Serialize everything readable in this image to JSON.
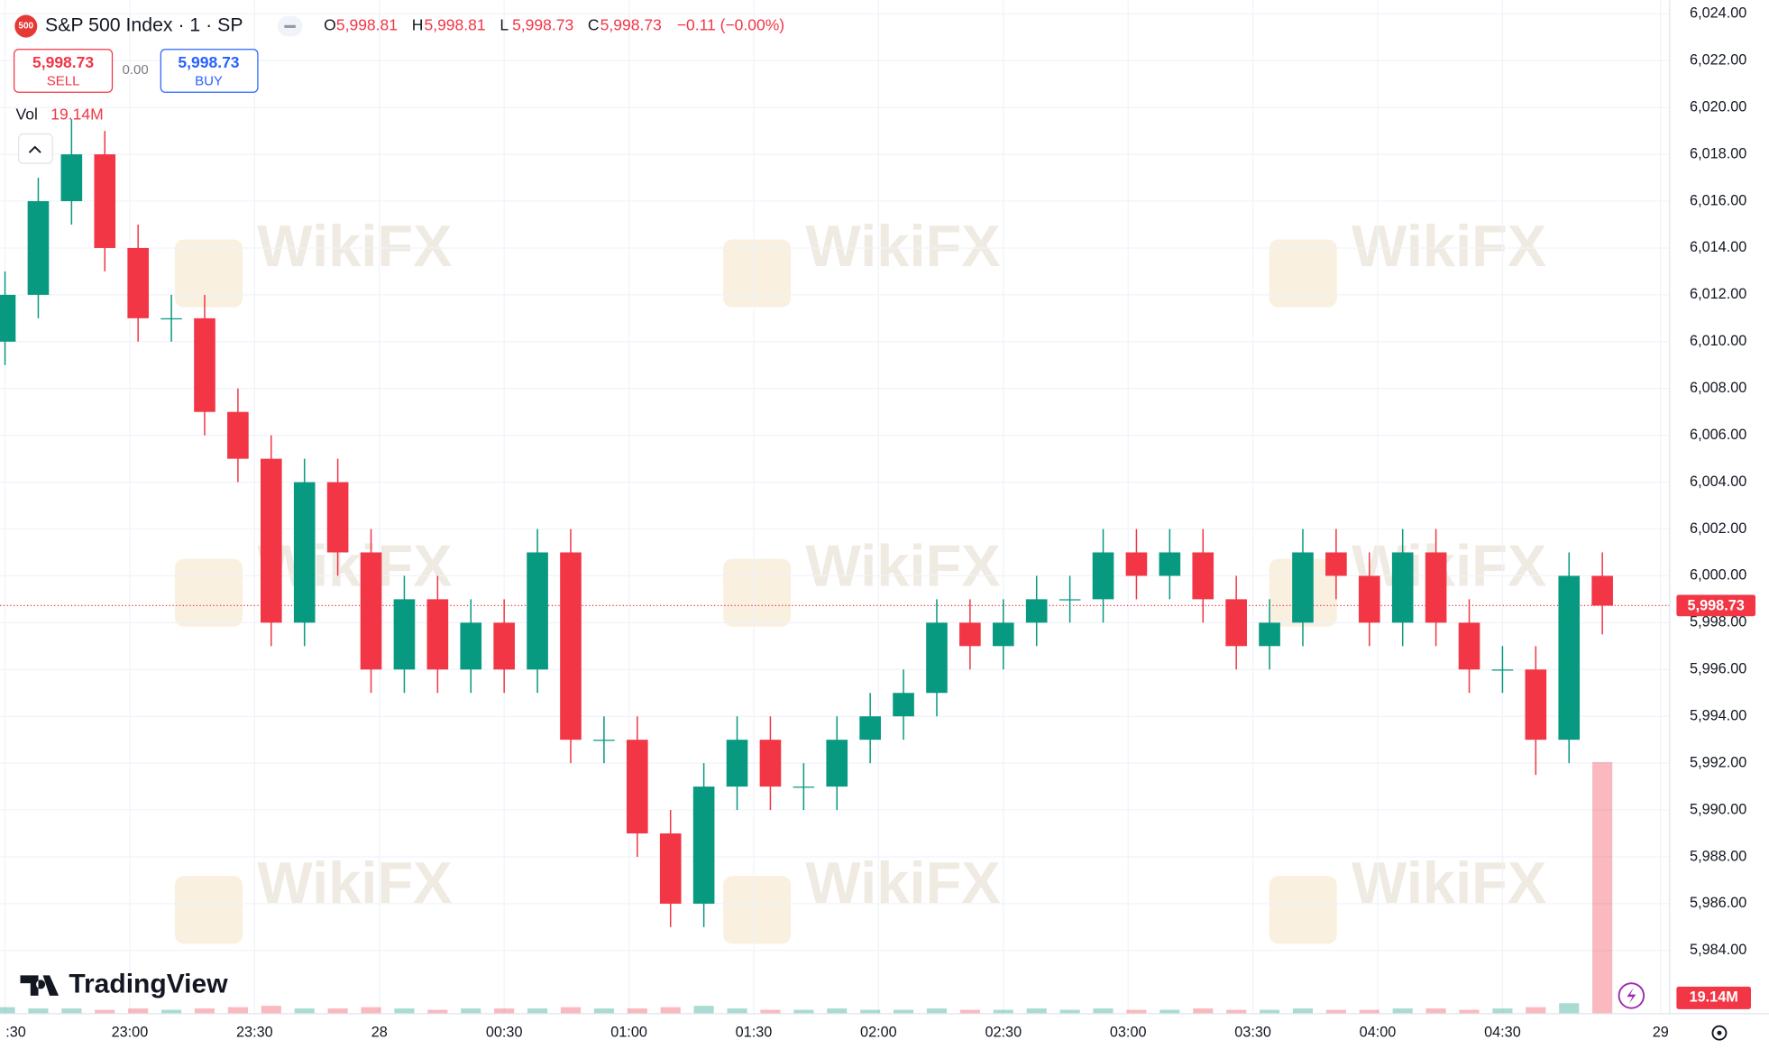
{
  "header": {
    "badge": "500",
    "ohlc": [
      {
        "key": "O",
        "value": "5,998.81"
      },
      {
        "key": "H",
        "value": "5,998.81"
      },
      {
        "key": "L",
        "value": "5,998.73"
      },
      {
        "key": "C",
        "value": "5,998.73"
      }
    ],
    "change": "−0.11 (−0.00%)",
    "sell": {
      "price": "5,998.73",
      "label": "SELL"
    },
    "spread": "0.00",
    "buy": {
      "price": "5,998.73",
      "label": "BUY"
    },
    "brand": "TradingView",
    "watermark": "WikiFX"
  },
  "chart_data": {
    "type": "candlestick",
    "title": "S&P 500 Index · 1 · SP",
    "x": [
      0,
      8,
      16,
      24,
      32,
      40,
      48,
      56,
      64,
      72,
      80,
      88,
      96,
      104,
      112,
      120,
      128,
      136,
      144,
      152,
      160,
      168,
      176,
      184,
      192,
      200,
      208,
      216,
      224,
      232,
      240,
      248,
      256,
      264,
      272,
      280,
      288,
      296,
      304,
      312,
      320,
      328,
      336,
      344,
      352,
      360,
      368,
      376,
      384
    ],
    "open": [
      6010,
      6012,
      6016,
      6018,
      6014,
      6011,
      6011,
      6007,
      6005,
      5998,
      6004,
      6001,
      5996,
      5999,
      5996,
      5998,
      5996,
      6001,
      5993,
      5993,
      5989,
      5986,
      5991,
      5993,
      5991,
      5991,
      5993,
      5994,
      5995,
      5998,
      5997,
      5998,
      5999,
      5999,
      6001,
      6000,
      6001,
      5999,
      5997,
      5998,
      6001,
      6000,
      5998,
      6001,
      5998,
      5996,
      5996,
      5993,
      6000
    ],
    "high": [
      6013,
      6017,
      6019.5,
      6019,
      6015,
      6012,
      6012,
      6008,
      6006,
      6005,
      6005,
      6002,
      6000,
      6000,
      5999,
      5999,
      6002,
      6002,
      5994,
      5994,
      5990,
      5992,
      5994,
      5994,
      5992,
      5994,
      5995,
      5996,
      5999,
      5999,
      5999,
      6000,
      6000,
      6002,
      6002,
      6002,
      6002,
      6000,
      5999,
      6002,
      6002,
      6001,
      6002,
      6002,
      5999,
      5997,
      5997,
      6001,
      6001
    ],
    "low": [
      6009,
      6011,
      6015,
      6013,
      6010,
      6010,
      6006,
      6004,
      5997,
      5997,
      6000,
      5995,
      5995,
      5995,
      5995,
      5995,
      5995,
      5992,
      5992,
      5988,
      5985,
      5985,
      5990,
      5990,
      5990,
      5990,
      5992,
      5993,
      5994,
      5996,
      5996,
      5997,
      5998,
      5998,
      5999,
      5999,
      5998,
      5996,
      5996,
      5997,
      5999,
      5997,
      5997,
      5997,
      5995,
      5995,
      5991.5,
      5992,
      5997.5
    ],
    "close": [
      6012,
      6016,
      6018,
      6014,
      6011,
      6011,
      6007,
      6005,
      5998,
      6004,
      6001,
      5996,
      5999,
      5996,
      5998,
      5996,
      6001,
      5993,
      5993,
      5989,
      5986,
      5991,
      5993,
      5991,
      5991,
      5993,
      5994,
      5995,
      5998,
      5997,
      5998,
      5999,
      5999,
      6001,
      6000,
      6001,
      5999,
      5997,
      5998,
      6001,
      6000,
      5998,
      6001,
      5998,
      5996,
      5996,
      5993,
      6000,
      5998.73
    ],
    "up_color": "#089981",
    "down_color": "#f23645",
    "xlim": [
      -1.2,
      400.2
    ],
    "xticks": [
      {
        "value": 0,
        "label": ":30"
      },
      {
        "value": 30,
        "label": "23:00"
      },
      {
        "value": 60,
        "label": "23:30"
      },
      {
        "value": 90,
        "label": "28"
      },
      {
        "value": 120,
        "label": "00:30"
      },
      {
        "value": 150,
        "label": "01:00"
      },
      {
        "value": 180,
        "label": "01:30"
      },
      {
        "value": 210,
        "label": "02:00"
      },
      {
        "value": 240,
        "label": "02:30"
      },
      {
        "value": 270,
        "label": "03:00"
      },
      {
        "value": 300,
        "label": "03:30"
      },
      {
        "value": 330,
        "label": "04:00"
      },
      {
        "value": 360,
        "label": "04:30"
      },
      {
        "value": 398,
        "label": "29"
      }
    ],
    "ylim": [
      5981.3,
      6024.58
    ],
    "yticks": [
      {
        "value": 5984,
        "label": "5,984.00"
      },
      {
        "value": 5986,
        "label": "5,986.00"
      },
      {
        "value": 5988,
        "label": "5,988.00"
      },
      {
        "value": 5990,
        "label": "5,990.00"
      },
      {
        "value": 5992,
        "label": "5,992.00"
      },
      {
        "value": 5994,
        "label": "5,994.00"
      },
      {
        "value": 5996,
        "label": "5,996.00"
      },
      {
        "value": 5998,
        "label": "5,998.00"
      },
      {
        "value": 6000,
        "label": "6,000.00"
      },
      {
        "value": 6002,
        "label": "6,002.00"
      },
      {
        "value": 6004,
        "label": "6,004.00"
      },
      {
        "value": 6006,
        "label": "6,006.00"
      },
      {
        "value": 6008,
        "label": "6,008.00"
      },
      {
        "value": 6010,
        "label": "6,010.00"
      },
      {
        "value": 6012,
        "label": "6,012.00"
      },
      {
        "value": 6014,
        "label": "6,014.00"
      },
      {
        "value": 6016,
        "label": "6,016.00"
      },
      {
        "value": 6018,
        "label": "6,018.00"
      },
      {
        "value": 6020,
        "label": "6,020.00"
      },
      {
        "value": 6022,
        "label": "6,022.00"
      },
      {
        "value": 6024,
        "label": "6,024.00"
      }
    ],
    "grid": true,
    "last_price": {
      "value": 5998.73,
      "label": "5,998.73"
    },
    "volume": {
      "name": "Vol",
      "values": [
        0.5,
        0.4,
        0.4,
        0.3,
        0.4,
        0.3,
        0.4,
        0.5,
        0.6,
        0.4,
        0.4,
        0.5,
        0.4,
        0.3,
        0.4,
        0.4,
        0.4,
        0.5,
        0.4,
        0.4,
        0.5,
        0.6,
        0.4,
        0.3,
        0.3,
        0.4,
        0.3,
        0.3,
        0.4,
        0.3,
        0.3,
        0.4,
        0.3,
        0.4,
        0.3,
        0.3,
        0.4,
        0.3,
        0.3,
        0.4,
        0.3,
        0.3,
        0.4,
        0.4,
        0.3,
        0.4,
        0.5,
        0.8,
        19.14
      ],
      "last_label": "19.14M"
    }
  }
}
